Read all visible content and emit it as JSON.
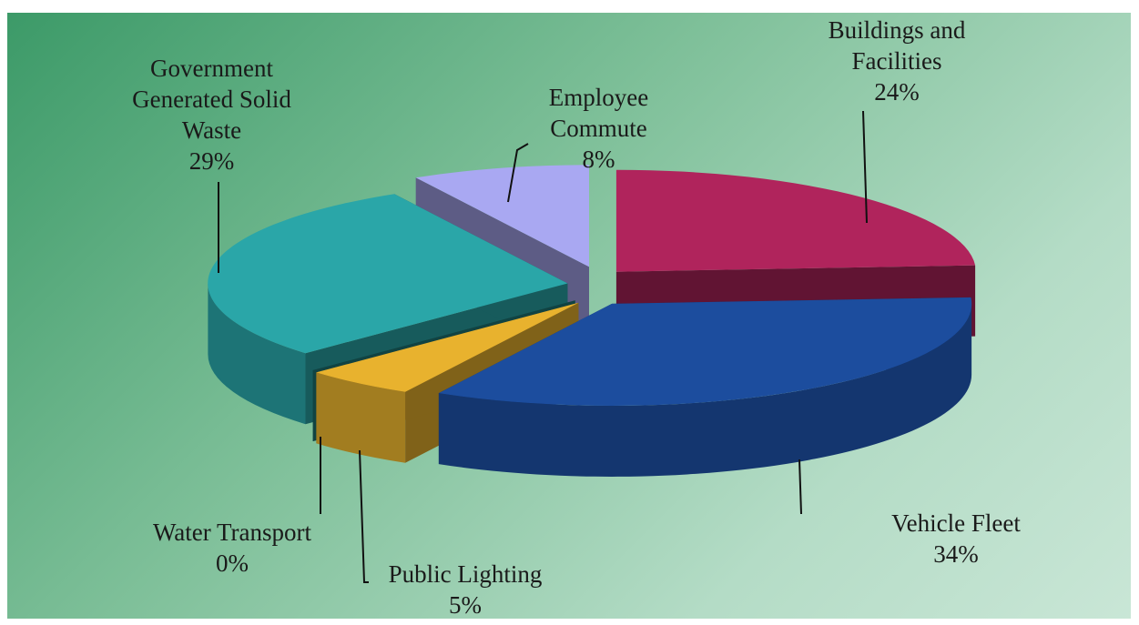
{
  "chart_data": {
    "type": "pie3d",
    "categories": [
      "Buildings and Facilities",
      "Vehicle Fleet",
      "Public Lighting",
      "Water Transport",
      "Government Generated Solid Waste",
      "Employee Commute"
    ],
    "values": [
      24,
      34,
      5,
      0,
      29,
      8
    ],
    "value_labels": [
      "24%",
      "34%",
      "5%",
      "0%",
      "29%",
      "8%"
    ],
    "colors": [
      "#b0245c",
      "#1c4d9e",
      "#e8b22e",
      "#1f7a78",
      "#2aa6a8",
      "#a9a8f2"
    ]
  }
}
